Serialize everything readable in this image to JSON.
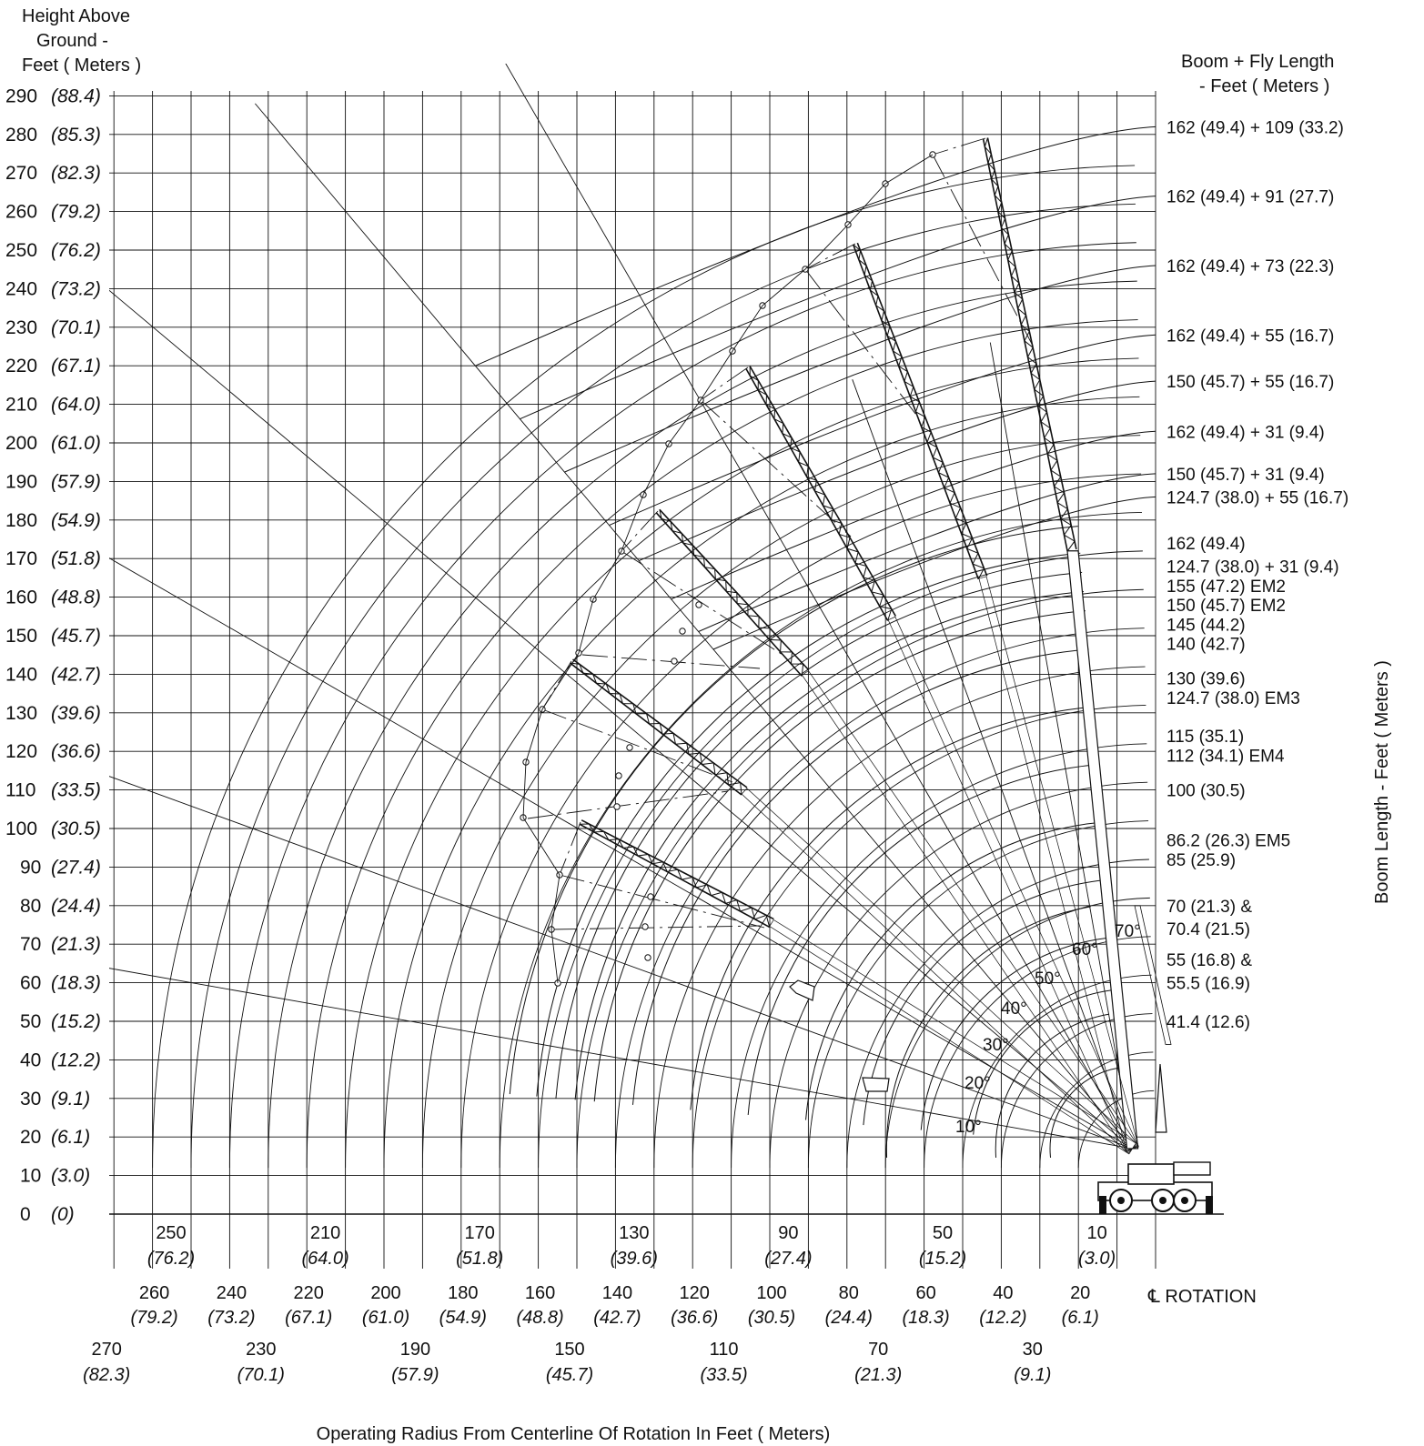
{
  "title_block": {
    "y_title": [
      "Height Above",
      "Ground -",
      "Feet ( Meters )"
    ],
    "right_title": [
      "Boom + Fly Length",
      "- Feet (    Meters )"
    ],
    "side_title": "Boom Length - Feet (  Meters )",
    "x_title": "Operating Radius From Centerline Of Rotation In Feet ( Meters)",
    "rotation_label": "℄ ROTATION"
  },
  "colors": {
    "ink": "#111111",
    "background": "#ffffff"
  },
  "chart_data": {
    "type": "range_diagram",
    "x_unit": "ft",
    "y_unit": "ft",
    "xlim": [
      0,
      270
    ],
    "ylim": [
      0,
      290
    ],
    "grid": true,
    "height_ticks": [
      {
        "ft": "290",
        "m": "(88.4)"
      },
      {
        "ft": "280",
        "m": "(85.3)"
      },
      {
        "ft": "270",
        "m": "(82.3)"
      },
      {
        "ft": "260",
        "m": "(79.2)"
      },
      {
        "ft": "250",
        "m": "(76.2)"
      },
      {
        "ft": "240",
        "m": "(73.2)"
      },
      {
        "ft": "230",
        "m": "(70.1)"
      },
      {
        "ft": "220",
        "m": "(67.1)"
      },
      {
        "ft": "210",
        "m": "(64.0)"
      },
      {
        "ft": "200",
        "m": "(61.0)"
      },
      {
        "ft": "190",
        "m": "(57.9)"
      },
      {
        "ft": "180",
        "m": "(54.9)"
      },
      {
        "ft": "170",
        "m": "(51.8)"
      },
      {
        "ft": "160",
        "m": "(48.8)"
      },
      {
        "ft": "150",
        "m": "(45.7)"
      },
      {
        "ft": "140",
        "m": "(42.7)"
      },
      {
        "ft": "130",
        "m": "(39.6)"
      },
      {
        "ft": "120",
        "m": "(36.6)"
      },
      {
        "ft": "110",
        "m": "(33.5)"
      },
      {
        "ft": "100",
        "m": "(30.5)"
      },
      {
        "ft": "90",
        "m": "(27.4)"
      },
      {
        "ft": "80",
        "m": "(24.4)"
      },
      {
        "ft": "70",
        "m": "(21.3)"
      },
      {
        "ft": "60",
        "m": "(18.3)"
      },
      {
        "ft": "50",
        "m": "(15.2)"
      },
      {
        "ft": "40",
        "m": "(12.2)"
      },
      {
        "ft": "30",
        "m": "(9.1)"
      },
      {
        "ft": "20",
        "m": "(6.1)"
      },
      {
        "ft": "10",
        "m": "(3.0)"
      },
      {
        "ft": "0",
        "m": "(0)"
      }
    ],
    "radius_ticks_row1": [
      {
        "ft": "250",
        "m": "(76.2)"
      },
      {
        "ft": "210",
        "m": "(64.0)"
      },
      {
        "ft": "170",
        "m": "(51.8)"
      },
      {
        "ft": "130",
        "m": "(39.6)"
      },
      {
        "ft": "90",
        "m": "(27.4)"
      },
      {
        "ft": "50",
        "m": "(15.2)"
      },
      {
        "ft": "10",
        "m": "(3.0)"
      }
    ],
    "radius_ticks_row2": [
      {
        "ft": "260",
        "m": "(79.2)"
      },
      {
        "ft": "240",
        "m": "(73.2)"
      },
      {
        "ft": "220",
        "m": "(67.1)"
      },
      {
        "ft": "200",
        "m": "(61.0)"
      },
      {
        "ft": "180",
        "m": "(54.9)"
      },
      {
        "ft": "160",
        "m": "(48.8)"
      },
      {
        "ft": "140",
        "m": "(42.7)"
      },
      {
        "ft": "120",
        "m": "(36.6)"
      },
      {
        "ft": "100",
        "m": "(30.5)"
      },
      {
        "ft": "80",
        "m": "(24.4)"
      },
      {
        "ft": "60",
        "m": "(18.3)"
      },
      {
        "ft": "40",
        "m": "(12.2)"
      },
      {
        "ft": "20",
        "m": "(6.1)"
      }
    ],
    "radius_ticks_row3": [
      {
        "ft": "270",
        "m": "(82.3)"
      },
      {
        "ft": "230",
        "m": "(70.1)"
      },
      {
        "ft": "190",
        "m": "(57.9)"
      },
      {
        "ft": "150",
        "m": "(45.7)"
      },
      {
        "ft": "110",
        "m": "(33.5)"
      },
      {
        "ft": "70",
        "m": "(21.3)"
      },
      {
        "ft": "30",
        "m": "(9.1)"
      }
    ],
    "angle_labels": [
      "10°",
      "20°",
      "30°",
      "40°",
      "50°",
      "60°",
      "70°"
    ],
    "length_labels": [
      {
        "text": "162  (49.4)  + 109   (33.2)",
        "y_ft": 282
      },
      {
        "text": "162  (49.4)  + 91   (27.7)",
        "y_ft": 264
      },
      {
        "text": "162  (49.4)  + 73   (22.3)",
        "y_ft": 246
      },
      {
        "text": "162  (49.4)  + 55   (16.7)",
        "y_ft": 228
      },
      {
        "text": "150  (45.7)  + 55   (16.7)",
        "y_ft": 216
      },
      {
        "text": "162  (49.4)  + 31   (9.4)",
        "y_ft": 203
      },
      {
        "text": "150  (45.7)  + 31   (9.4)",
        "y_ft": 192
      },
      {
        "text": "124.7  (38.0)  + 55   (16.7)",
        "y_ft": 186
      },
      {
        "text": "162  (49.4)",
        "y_ft": 174
      },
      {
        "text": "124.7  (38.0)  + 31    (9.4)",
        "y_ft": 168
      },
      {
        "text": "155  (47.2)  EM2",
        "y_ft": 163
      },
      {
        "text": "150  (45.7)  EM2",
        "y_ft": 158
      },
      {
        "text": "145  (44.2)",
        "y_ft": 153
      },
      {
        "text": "140  (42.7)",
        "y_ft": 148
      },
      {
        "text": "130  (39.6)",
        "y_ft": 139
      },
      {
        "text": "124.7  (38.0)  EM3",
        "y_ft": 134
      },
      {
        "text": "115  (35.1)",
        "y_ft": 124
      },
      {
        "text": "112  (34.1)  EM4",
        "y_ft": 119
      },
      {
        "text": "100  (30.5)",
        "y_ft": 110
      },
      {
        "text": "86.2  (26.3)  EM5",
        "y_ft": 97
      },
      {
        "text": "85  (25.9)",
        "y_ft": 92
      },
      {
        "text": "70  (21.3)  &",
        "y_ft": 80
      },
      {
        "text": "70.4  (21.5)",
        "y_ft": 74
      },
      {
        "text": "55  (16.8)  &",
        "y_ft": 66
      },
      {
        "text": "55.5  (16.9)",
        "y_ft": 60
      },
      {
        "text": "41.4  (12.6)",
        "y_ft": 50
      }
    ],
    "boom_lengths_ft": [
      41.4,
      55,
      70,
      85,
      100,
      115,
      130,
      140,
      145,
      150,
      155,
      162
    ],
    "boom_configs": [
      {
        "boom_ft": 162,
        "fly_ft": 109,
        "boom_angle_deg": 78
      },
      {
        "boom_ft": 162,
        "fly_ft": 91,
        "boom_angle_deg": 72
      },
      {
        "boom_ft": 162,
        "fly_ft": 73,
        "boom_angle_deg": 72
      },
      {
        "boom_ft": 150,
        "fly_ft": 55,
        "boom_angle_deg": 64
      },
      {
        "boom_ft": 124.7,
        "fly_ft": 55,
        "boom_angle_deg": 54
      },
      {
        "boom_ft": 124.7,
        "fly_ft": 31,
        "boom_angle_deg": 45
      },
      {
        "boom_ft": 124.7,
        "fly_ft": 31,
        "boom_angle_deg": 35
      }
    ]
  }
}
